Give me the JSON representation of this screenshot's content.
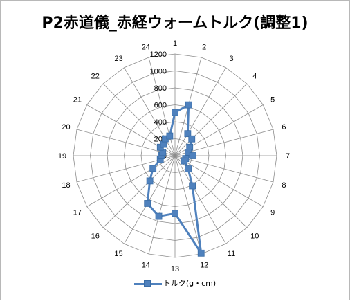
{
  "chart_data": {
    "type": "radar",
    "title": "P2赤道儀_赤経ウォームトルク(調整1)",
    "categories": [
      "1",
      "2",
      "3",
      "4",
      "5",
      "6",
      "7",
      "8",
      "9",
      "10",
      "11",
      "12",
      "13",
      "14",
      "15",
      "16",
      "17",
      "18",
      "19",
      "20",
      "21",
      "22",
      "23",
      "24"
    ],
    "r_ticks": [
      "0",
      "200",
      "400",
      "600",
      "800",
      "1000",
      "1200"
    ],
    "rmax": 1200,
    "grid": true,
    "legend_position": "bottom",
    "series": [
      {
        "name": "トルク(g・cm)",
        "color": "#4f81bd",
        "values": [
          510,
          620,
          300,
          280,
          200,
          160,
          210,
          130,
          125,
          220,
          410,
          1190,
          680,
          740,
          650,
          420,
          300,
          180,
          160,
          150,
          200,
          190,
          230,
          240
        ]
      }
    ]
  }
}
